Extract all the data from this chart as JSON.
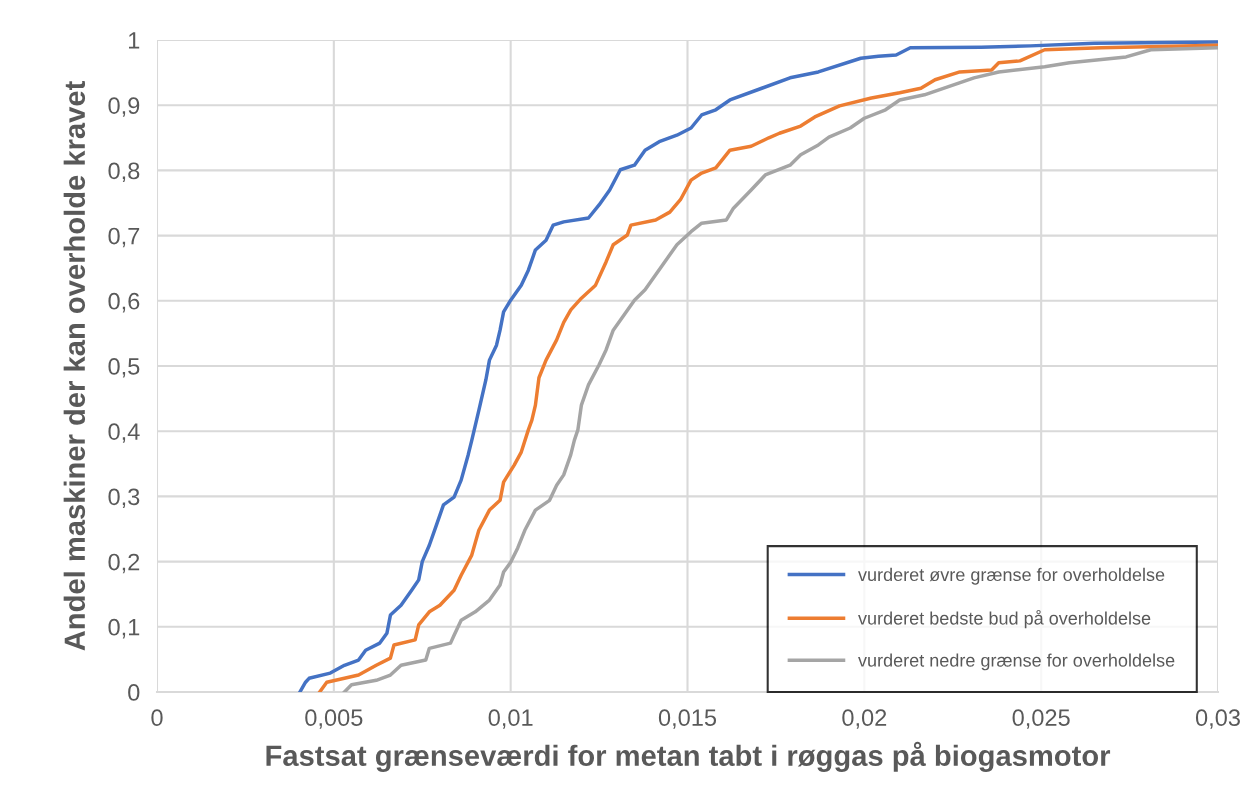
{
  "chart_data": {
    "type": "line",
    "xlabel": "Fastsat grænseværdi for metan tabt i røggas på biogasmotor",
    "ylabel": "Andel maskiner der kan overholde kravet",
    "xlim": [
      0,
      0.03
    ],
    "ylim": [
      0,
      1
    ],
    "xticks": [
      0,
      {
        "value": 0.005,
        "label": "0,005"
      },
      {
        "value": 0.01,
        "label": "0,01"
      },
      {
        "value": 0.015,
        "label": "0,015"
      },
      {
        "value": 0.02,
        "label": "0,02"
      },
      {
        "value": 0.025,
        "label": "0,025"
      },
      {
        "value": 0.03,
        "label": "0,03"
      }
    ],
    "yticks": [
      0,
      {
        "value": 0.1,
        "label": "0,1"
      },
      {
        "value": 0.2,
        "label": "0,2"
      },
      {
        "value": 0.3,
        "label": "0,3"
      },
      {
        "value": 0.4,
        "label": "0,4"
      },
      {
        "value": 0.5,
        "label": "0,5"
      },
      {
        "value": 0.6,
        "label": "0,6"
      },
      {
        "value": 0.7,
        "label": "0,7"
      },
      {
        "value": 0.8,
        "label": "0,8"
      },
      {
        "value": 0.9,
        "label": "0,9"
      },
      1
    ],
    "grid": true,
    "legend": "bottom right",
    "marker": "none",
    "line_style": "solid",
    "series": [
      {
        "name": "vurderet øvre grænse for overholdelse",
        "color": "#4472c4",
        "x": [
          0.00404,
          0.0042,
          0.0043,
          0.0049,
          0.0053,
          0.0057,
          0.0059,
          0.0063,
          0.0065,
          0.0066,
          0.0069,
          0.0072,
          0.0074,
          0.0075,
          0.0077,
          0.0079,
          0.0081,
          0.0084,
          0.0086,
          0.0088,
          0.0089,
          0.0091,
          0.0093,
          0.0094,
          0.0096,
          0.0097,
          0.0098,
          0.01,
          0.0103,
          0.0105,
          0.0107,
          0.011,
          0.0112,
          0.0115,
          0.0122,
          0.0125,
          0.0128,
          0.0131,
          0.0135,
          0.0138,
          0.0142,
          0.0147,
          0.0151,
          0.0154,
          0.0158,
          0.0162,
          0.0171,
          0.0179,
          0.0187,
          0.0199,
          0.0204,
          0.0209,
          0.0213,
          0.0233,
          0.0247,
          0.0265,
          0.03
        ],
        "values": [
          0,
          0.015,
          0.021,
          0.029,
          0.041,
          0.049,
          0.064,
          0.075,
          0.09,
          0.118,
          0.133,
          0.156,
          0.172,
          0.2,
          0.225,
          0.256,
          0.287,
          0.299,
          0.325,
          0.364,
          0.386,
          0.432,
          0.479,
          0.509,
          0.532,
          0.555,
          0.583,
          0.601,
          0.624,
          0.647,
          0.678,
          0.693,
          0.716,
          0.721,
          0.727,
          0.747,
          0.77,
          0.801,
          0.808,
          0.831,
          0.844,
          0.854,
          0.865,
          0.885,
          0.893,
          0.908,
          0.926,
          0.942,
          0.951,
          0.972,
          0.975,
          0.977,
          0.988,
          0.989,
          0.991,
          0.995,
          0.997
        ]
      },
      {
        "name": "vurderet bedste bud på overholdelse",
        "color": "#ed7d31",
        "x": [
          0.0046,
          0.0048,
          0.0053,
          0.0057,
          0.0062,
          0.0066,
          0.0067,
          0.0073,
          0.0074,
          0.0077,
          0.008,
          0.0084,
          0.0086,
          0.0089,
          0.0091,
          0.0094,
          0.0097,
          0.0098,
          0.0101,
          0.0103,
          0.0105,
          0.0106,
          0.0107,
          0.0108,
          0.011,
          0.0113,
          0.0115,
          0.0117,
          0.012,
          0.0124,
          0.0127,
          0.0129,
          0.0133,
          0.0134,
          0.0141,
          0.0145,
          0.0148,
          0.0151,
          0.0154,
          0.0158,
          0.0162,
          0.0168,
          0.0173,
          0.0176,
          0.0182,
          0.0186,
          0.0193,
          0.0202,
          0.021,
          0.0216,
          0.022,
          0.0227,
          0.0236,
          0.0238,
          0.0244,
          0.0251,
          0.0267,
          0.03
        ],
        "values": [
          0,
          0.015,
          0.021,
          0.026,
          0.041,
          0.052,
          0.072,
          0.08,
          0.103,
          0.123,
          0.133,
          0.156,
          0.179,
          0.21,
          0.248,
          0.279,
          0.294,
          0.322,
          0.348,
          0.368,
          0.402,
          0.417,
          0.44,
          0.482,
          0.509,
          0.54,
          0.567,
          0.586,
          0.604,
          0.624,
          0.66,
          0.686,
          0.701,
          0.716,
          0.724,
          0.736,
          0.755,
          0.785,
          0.796,
          0.804,
          0.831,
          0.837,
          0.85,
          0.857,
          0.868,
          0.882,
          0.899,
          0.911,
          0.919,
          0.926,
          0.939,
          0.951,
          0.954,
          0.965,
          0.968,
          0.985,
          0.988,
          0.992
        ]
      },
      {
        "name": "vurderet nedre grænse for overholdelse",
        "color": "#a5a5a5",
        "x": [
          0.0053,
          0.0055,
          0.0062,
          0.0066,
          0.0069,
          0.0076,
          0.0077,
          0.0083,
          0.0084,
          0.0086,
          0.009,
          0.0094,
          0.0097,
          0.0098,
          0.01,
          0.0102,
          0.0104,
          0.0107,
          0.0111,
          0.0113,
          0.0115,
          0.0117,
          0.0118,
          0.0119,
          0.012,
          0.0122,
          0.0125,
          0.0127,
          0.0129,
          0.0132,
          0.0135,
          0.0138,
          0.0141,
          0.0144,
          0.0147,
          0.0151,
          0.0154,
          0.0161,
          0.0163,
          0.0168,
          0.0172,
          0.0179,
          0.0182,
          0.0187,
          0.019,
          0.0196,
          0.02,
          0.0206,
          0.021,
          0.0217,
          0.0224,
          0.0231,
          0.0238,
          0.0251,
          0.0258,
          0.0274,
          0.0281,
          0.03
        ],
        "values": [
          0,
          0.011,
          0.018,
          0.026,
          0.041,
          0.049,
          0.067,
          0.075,
          0.087,
          0.11,
          0.123,
          0.141,
          0.164,
          0.184,
          0.199,
          0.221,
          0.248,
          0.279,
          0.294,
          0.317,
          0.333,
          0.364,
          0.386,
          0.402,
          0.44,
          0.471,
          0.502,
          0.525,
          0.555,
          0.578,
          0.601,
          0.617,
          0.64,
          0.663,
          0.686,
          0.706,
          0.719,
          0.724,
          0.742,
          0.77,
          0.793,
          0.808,
          0.824,
          0.839,
          0.851,
          0.865,
          0.88,
          0.893,
          0.908,
          0.916,
          0.929,
          0.942,
          0.951,
          0.959,
          0.965,
          0.974,
          0.985,
          0.988
        ]
      }
    ]
  }
}
